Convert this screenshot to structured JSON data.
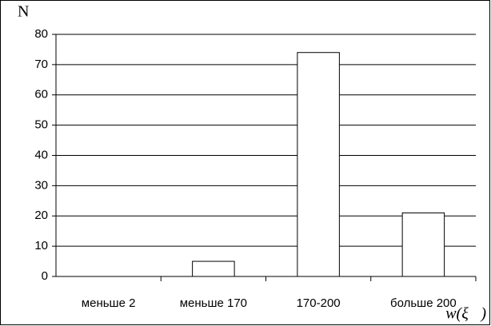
{
  "chart_data": {
    "type": "bar",
    "y_label": "N",
    "x_label": "w(ξ⃗)",
    "categories": [
      "меньше 2",
      "меньше 170",
      "170-200",
      "больше 200"
    ],
    "values": [
      0,
      5,
      74,
      21
    ],
    "color": "#ffffff",
    "ylim": [
      0,
      80
    ],
    "yticks": [
      0,
      10,
      20,
      30,
      40,
      50,
      60,
      70,
      80
    ],
    "grid": true
  }
}
